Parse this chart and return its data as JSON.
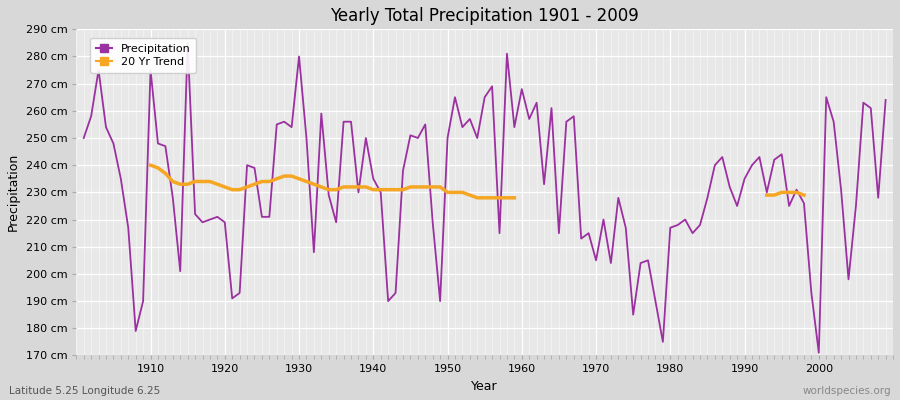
{
  "title": "Yearly Total Precipitation 1901 - 2009",
  "xlabel": "Year",
  "ylabel": "Precipitation",
  "subtitle": "Latitude 5.25 Longitude 6.25",
  "watermark": "worldspecies.org",
  "ylim": [
    170,
    290
  ],
  "yticks": [
    170,
    180,
    190,
    200,
    210,
    220,
    230,
    240,
    250,
    260,
    270,
    280,
    290
  ],
  "ytick_labels": [
    "170 cm",
    "180 cm",
    "190 cm",
    "200 cm",
    "210 cm",
    "220 cm",
    "230 cm",
    "240 cm",
    "250 cm",
    "260 cm",
    "270 cm",
    "280 cm",
    "290 cm"
  ],
  "precip_color": "#9b30a0",
  "trend_color": "#f5a623",
  "fig_bg": "#d8d8d8",
  "plot_bg": "#e8e8e8",
  "years": [
    1901,
    1902,
    1903,
    1904,
    1905,
    1906,
    1907,
    1908,
    1909,
    1910,
    1911,
    1912,
    1913,
    1914,
    1915,
    1916,
    1917,
    1918,
    1919,
    1920,
    1921,
    1922,
    1923,
    1924,
    1925,
    1926,
    1927,
    1928,
    1929,
    1930,
    1931,
    1932,
    1933,
    1934,
    1935,
    1936,
    1937,
    1938,
    1939,
    1940,
    1941,
    1942,
    1943,
    1944,
    1945,
    1946,
    1947,
    1948,
    1949,
    1950,
    1951,
    1952,
    1953,
    1954,
    1955,
    1956,
    1957,
    1958,
    1959,
    1960,
    1961,
    1962,
    1963,
    1964,
    1965,
    1966,
    1967,
    1968,
    1969,
    1970,
    1971,
    1972,
    1973,
    1974,
    1975,
    1976,
    1977,
    1978,
    1979,
    1980,
    1981,
    1982,
    1983,
    1984,
    1985,
    1986,
    1987,
    1988,
    1989,
    1990,
    1991,
    1992,
    1993,
    1994,
    1995,
    1996,
    1997,
    1998,
    1999,
    2000,
    2001,
    2002,
    2003,
    2004,
    2005,
    2006,
    2007,
    2008,
    2009
  ],
  "precip": [
    250,
    258,
    275,
    254,
    248,
    235,
    217,
    179,
    190,
    275,
    248,
    247,
    228,
    201,
    285,
    222,
    219,
    220,
    221,
    219,
    191,
    193,
    240,
    239,
    221,
    221,
    255,
    256,
    254,
    280,
    250,
    208,
    259,
    229,
    219,
    256,
    256,
    230,
    250,
    235,
    230,
    190,
    193,
    238,
    251,
    250,
    255,
    219,
    190,
    250,
    265,
    254,
    257,
    250,
    265,
    269,
    215,
    281,
    254,
    268,
    257,
    263,
    233,
    261,
    215,
    256,
    258,
    213,
    215,
    205,
    220,
    204,
    228,
    217,
    185,
    204,
    205,
    190,
    175,
    217,
    218,
    220,
    215,
    218,
    228,
    240,
    243,
    232,
    225,
    235,
    240,
    243,
    230,
    242,
    244,
    225,
    231,
    226,
    193,
    171,
    265,
    256,
    231,
    198,
    225,
    263,
    261,
    228,
    264
  ],
  "trend_seg1_years": [
    1910,
    1911,
    1912,
    1913,
    1914,
    1915,
    1916,
    1917,
    1918,
    1919,
    1920,
    1921,
    1922,
    1923,
    1924,
    1925,
    1926,
    1927,
    1928,
    1929,
    1930,
    1931,
    1932,
    1933,
    1934,
    1935,
    1936,
    1937,
    1938,
    1939,
    1940,
    1941,
    1942,
    1943,
    1944,
    1945,
    1946,
    1947,
    1948,
    1949,
    1950,
    1951,
    1952,
    1953,
    1954,
    1955,
    1956,
    1957,
    1958,
    1959
  ],
  "trend_seg1": [
    240,
    239,
    237,
    234,
    233,
    233,
    234,
    234,
    234,
    233,
    232,
    231,
    231,
    232,
    233,
    234,
    234,
    235,
    236,
    236,
    235,
    234,
    233,
    232,
    231,
    231,
    232,
    232,
    232,
    232,
    231,
    231,
    231,
    231,
    231,
    232,
    232,
    232,
    232,
    232,
    230,
    230,
    230,
    229,
    228,
    228,
    228,
    228,
    228,
    228
  ],
  "trend_seg2_years": [
    1993,
    1994,
    1995,
    1996,
    1997,
    1998
  ],
  "trend_seg2": [
    229,
    229,
    230,
    230,
    230,
    229
  ],
  "xlim": [
    1900,
    2010
  ],
  "xticks": [
    1910,
    1920,
    1930,
    1940,
    1950,
    1960,
    1970,
    1980,
    1990,
    2000
  ]
}
